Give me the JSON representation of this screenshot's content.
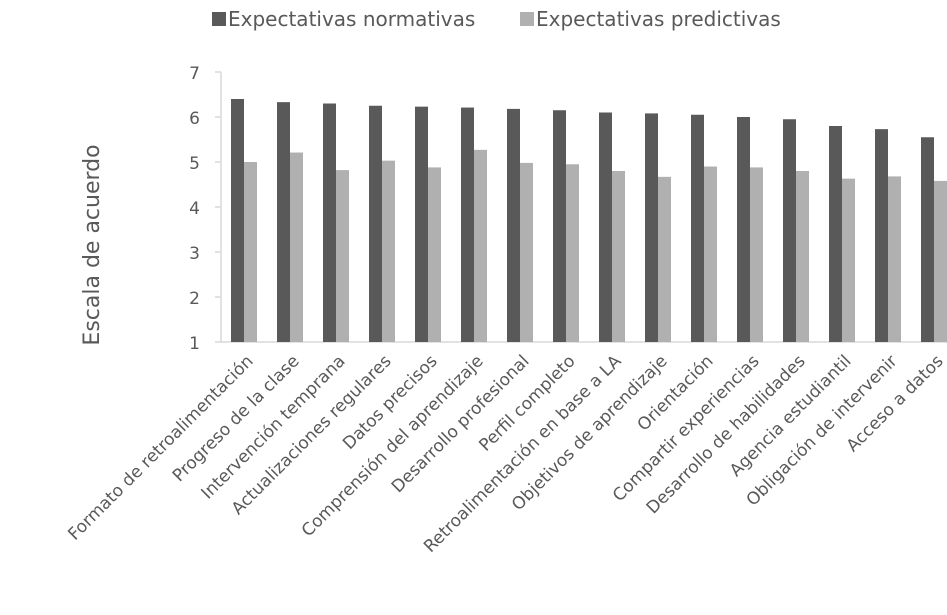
{
  "chart_data": {
    "type": "bar",
    "title": "",
    "xlabel": "",
    "ylabel": "Escala de acuerdo",
    "ylim": [
      1,
      7
    ],
    "yticks": [
      1,
      2,
      3,
      4,
      5,
      6,
      7
    ],
    "grid": false,
    "legend_position": "top",
    "categories": [
      "Formato de retroalimentación",
      "Progreso de la clase",
      "Intervención temprana",
      "Actualizaciones regulares",
      "Datos precisos",
      "Comprensión del aprendizaje",
      "Desarrollo profesional",
      "Perfil completo",
      "Retroalimentación en base a LA",
      "Objetivos de aprendizaje",
      "Orientación",
      "Compartir experiencias",
      "Desarrollo de habilidades",
      "Agencia estudiantil",
      "Obligación de intervenir",
      "Acceso a datos"
    ],
    "series": [
      {
        "name": "Expectativas normativas",
        "color": "#595959",
        "values": [
          6.4,
          6.33,
          6.3,
          6.25,
          6.23,
          6.21,
          6.18,
          6.15,
          6.1,
          6.08,
          6.05,
          6.0,
          5.95,
          5.8,
          5.73,
          5.55
        ]
      },
      {
        "name": "Expectativas predictivas",
        "color": "#b0b0b0",
        "values": [
          5.0,
          5.21,
          4.82,
          5.03,
          4.88,
          5.27,
          4.98,
          4.95,
          4.8,
          4.67,
          4.9,
          4.88,
          4.8,
          4.63,
          4.68,
          4.58
        ]
      }
    ]
  }
}
